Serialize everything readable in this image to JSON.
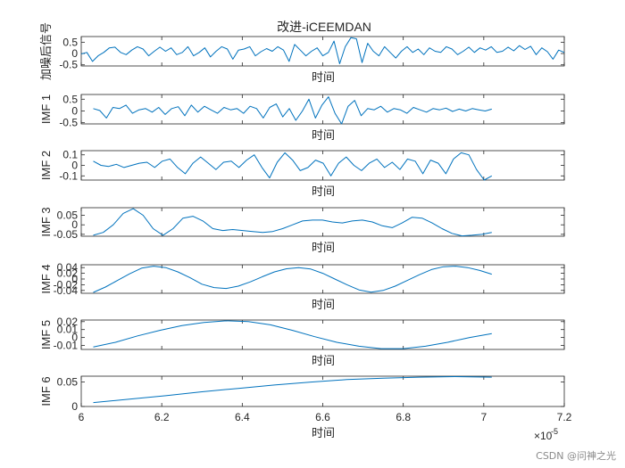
{
  "title": "改进-iCEEMDAN",
  "watermark": "CSDN @问神之光",
  "colors": {
    "line": "#0072BD",
    "axis": "#262626",
    "background": "#ffffff"
  },
  "chart_data": [
    {
      "type": "line",
      "name": "signal",
      "ylabel": "加噪后信号",
      "xlabel": "时间",
      "xlim": [
        6e-05,
        7.2e-05
      ],
      "ylim": [
        -0.55,
        0.75
      ],
      "yticks": [
        0.5,
        0,
        -0.5
      ],
      "ytick_labels": [
        "0.5",
        "0",
        "-0.5"
      ],
      "x_start": 6e-05,
      "x_end": 7.2e-05,
      "values": [
        -0.02,
        0.05,
        -0.35,
        -0.1,
        0.05,
        0.25,
        0.28,
        0.05,
        -0.05,
        0.15,
        0.3,
        0.2,
        -0.1,
        0.1,
        0.28,
        0.1,
        0.25,
        -0.05,
        0.05,
        0.3,
        -0.1,
        0.05,
        0.25,
        -0.15,
        0.1,
        0.3,
        0.2,
        -0.25,
        0.15,
        0.2,
        0.3,
        -0.1,
        0.08,
        0.22,
        0.1,
        0.3,
        0.15,
        -0.35,
        0.4,
        0.15,
        -0.1,
        0.1,
        0.25,
        -0.1,
        0.05,
        0.55,
        -0.45,
        0.3,
        0.7,
        0.65,
        -0.4,
        0.45,
        0.1,
        -0.1,
        0.3,
        0.05,
        -0.2,
        0.1,
        0.3,
        0.05,
        0.2,
        -0.05,
        0.25,
        0.1,
        0.05,
        0.3,
        0.2,
        -0.05,
        0.1,
        0.28,
        0.05,
        0.25,
        0.15,
        0.3,
        0.05,
        0.1,
        0.28,
        0.12,
        0.35,
        0.18,
        0.32,
        -0.05,
        0.25,
        0.08,
        -0.25,
        0.15,
        0.05
      ]
    },
    {
      "type": "line",
      "name": "imf1",
      "ylabel": "IMF 1",
      "xlabel": "时间",
      "xlim": [
        6e-05,
        7.2e-05
      ],
      "ylim": [
        -0.55,
        0.7
      ],
      "yticks": [
        0.5,
        0,
        -0.5
      ],
      "ytick_labels": [
        "0.5",
        "0",
        "-0.5"
      ],
      "x_start": 6.03e-05,
      "x_end": 7.02e-05,
      "values": [
        0.1,
        0.02,
        -0.3,
        0.15,
        0.1,
        0.25,
        -0.1,
        0.05,
        0.1,
        -0.05,
        0.15,
        -0.15,
        0.1,
        0.18,
        -0.2,
        0.25,
        -0.05,
        0.2,
        0.05,
        -0.1,
        0.15,
        0.05,
        0.1,
        -0.1,
        0.2,
        0.1,
        -0.3,
        0.15,
        0.3,
        -0.25,
        0.1,
        -0.4,
        0.0,
        0.5,
        -0.3,
        0.25,
        0.6,
        -0.1,
        -0.55,
        0.2,
        0.45,
        -0.2,
        0.1,
        0.05,
        0.2,
        -0.05,
        0.1,
        0.05,
        -0.1,
        0.15,
        0.05,
        -0.05,
        0.1,
        0.05,
        0.12,
        -0.02,
        0.08,
        0.0,
        0.1,
        0.05,
        0.0,
        0.08
      ]
    },
    {
      "type": "line",
      "name": "imf2",
      "ylabel": "IMF 2",
      "xlabel": "时间",
      "xlim": [
        6e-05,
        7.2e-05
      ],
      "ylim": [
        -0.14,
        0.14
      ],
      "yticks": [
        0.1,
        0,
        -0.1
      ],
      "ytick_labels": [
        "0.1",
        "0",
        "-0.1"
      ],
      "x_start": 6.03e-05,
      "x_end": 7.02e-05,
      "values": [
        0.04,
        0.0,
        -0.01,
        0.01,
        -0.02,
        0.0,
        0.02,
        0.03,
        -0.02,
        0.04,
        0.06,
        -0.02,
        -0.08,
        0.02,
        0.08,
        0.02,
        -0.04,
        0.03,
        0.04,
        -0.02,
        0.05,
        0.1,
        -0.02,
        -0.12,
        0.03,
        0.12,
        0.05,
        -0.05,
        -0.02,
        0.05,
        0.02,
        -0.1,
        0.02,
        0.08,
        0.0,
        -0.05,
        0.02,
        0.06,
        -0.02,
        0.03,
        -0.04,
        0.06,
        0.04,
        -0.08,
        0.05,
        0.02,
        -0.08,
        0.06,
        0.12,
        0.1,
        -0.04,
        -0.14,
        -0.1
      ]
    },
    {
      "type": "line",
      "name": "imf3",
      "ylabel": "IMF 3",
      "xlabel": "时间",
      "xlim": [
        6e-05,
        7.2e-05
      ],
      "ylim": [
        -0.06,
        0.09
      ],
      "yticks": [
        0.05,
        0,
        -0.05
      ],
      "ytick_labels": [
        "0.05",
        "0",
        "-0.05"
      ],
      "x_start": 6.03e-05,
      "x_end": 7.02e-05,
      "values": [
        -0.055,
        -0.04,
        0.0,
        0.06,
        0.085,
        0.05,
        -0.02,
        -0.055,
        -0.02,
        0.035,
        0.045,
        0.02,
        -0.02,
        -0.03,
        -0.025,
        -0.03,
        -0.035,
        -0.04,
        -0.035,
        -0.02,
        0.0,
        0.02,
        0.025,
        0.025,
        0.015,
        0.01,
        0.02,
        0.025,
        0.015,
        -0.005,
        -0.015,
        0.01,
        0.04,
        0.035,
        0.01,
        -0.02,
        -0.045,
        -0.058,
        -0.055,
        -0.05,
        -0.04
      ]
    },
    {
      "type": "line",
      "name": "imf4",
      "ylabel": "IMF 4",
      "xlabel": "时间",
      "xlim": [
        6e-05,
        7.2e-05
      ],
      "ylim": [
        -0.05,
        0.05
      ],
      "yticks": [
        0.04,
        0.02,
        0,
        -0.02,
        -0.04
      ],
      "ytick_labels": [
        "0.04",
        "0.02",
        "0",
        "-0.02",
        "-0.04"
      ],
      "x_start": 6.03e-05,
      "x_end": 7.02e-05,
      "values": [
        -0.047,
        -0.028,
        -0.005,
        0.018,
        0.038,
        0.045,
        0.04,
        0.025,
        0.005,
        -0.018,
        -0.03,
        -0.033,
        -0.025,
        -0.01,
        0.008,
        0.025,
        0.036,
        0.04,
        0.035,
        0.02,
        0.0,
        -0.02,
        -0.038,
        -0.046,
        -0.04,
        -0.025,
        -0.005,
        0.015,
        0.033,
        0.043,
        0.045,
        0.04,
        0.03,
        0.017
      ]
    },
    {
      "type": "line",
      "name": "imf5",
      "ylabel": "IMF 5",
      "xlabel": "时间",
      "xlim": [
        6e-05,
        7.2e-05
      ],
      "ylim": [
        -0.015,
        0.022
      ],
      "yticks": [
        0.02,
        0.01,
        0,
        -0.01
      ],
      "ytick_labels": [
        "0.02",
        "0.01",
        "0",
        "-0.01"
      ],
      "x_start": 6.03e-05,
      "x_end": 7.02e-05,
      "values": [
        -0.012,
        -0.006,
        0.002,
        0.009,
        0.015,
        0.019,
        0.021,
        0.02,
        0.016,
        0.009,
        0.001,
        -0.006,
        -0.011,
        -0.014,
        -0.014,
        -0.011,
        -0.006,
        0.0,
        0.005
      ]
    },
    {
      "type": "line",
      "name": "imf6",
      "ylabel": "IMF 6",
      "xlabel": "时间",
      "xlim": [
        6e-05,
        7.2e-05
      ],
      "ylim": [
        0.0,
        0.062
      ],
      "yticks": [
        0.05,
        0
      ],
      "ytick_labels": [
        "0.05",
        "0"
      ],
      "x_start": 6.03e-05,
      "x_end": 7.02e-05,
      "xticks": [
        6.0,
        6.2,
        6.4,
        6.6,
        6.8,
        7.0,
        7.2
      ],
      "xtick_labels": [
        "6",
        "6.2",
        "6.4",
        "6.6",
        "6.8",
        "7",
        "7.2"
      ],
      "x_multiplier": "×10",
      "x_exponent": "-5",
      "values": [
        0.008,
        0.015,
        0.022,
        0.03,
        0.037,
        0.044,
        0.05,
        0.055,
        0.058,
        0.06,
        0.061,
        0.06
      ]
    }
  ]
}
